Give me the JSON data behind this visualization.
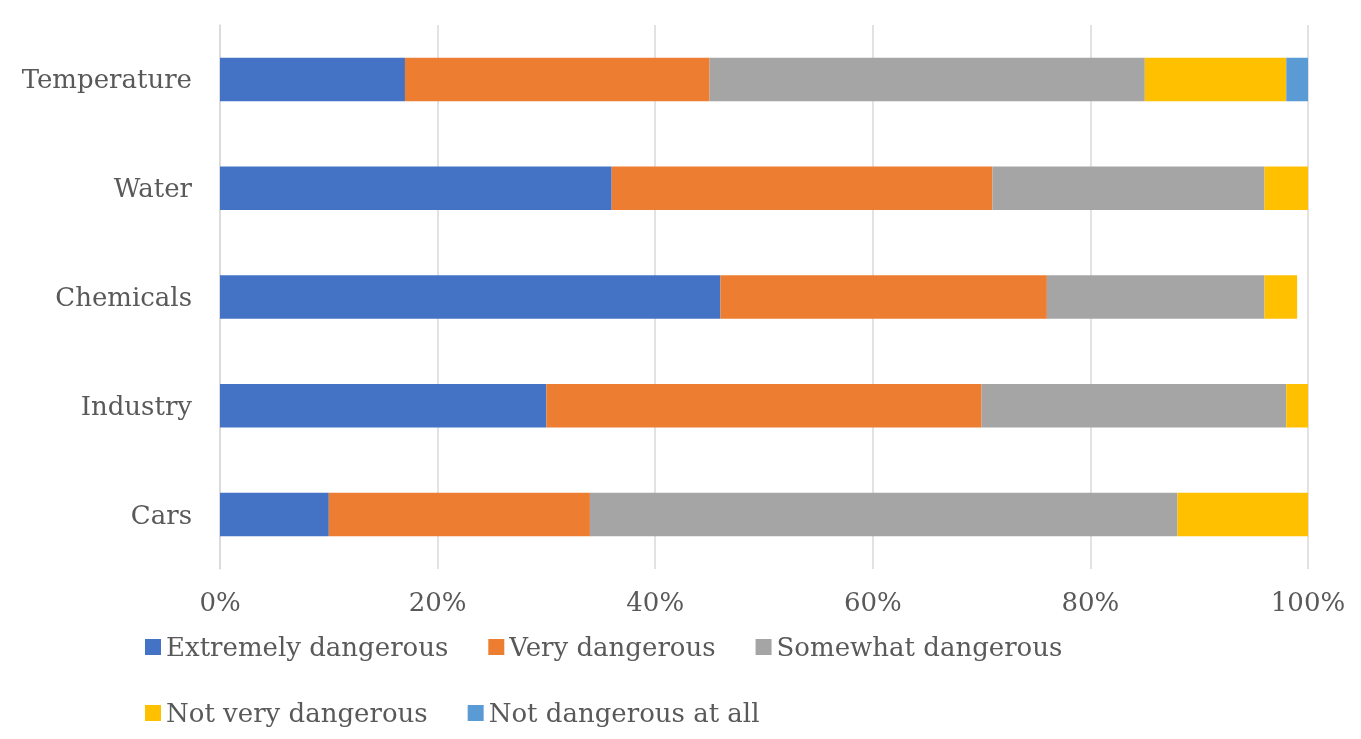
{
  "chart_data": {
    "type": "bar",
    "orientation": "horizontal",
    "stacked": true,
    "categories": [
      "Temperature",
      "Water",
      "Chemicals",
      "Industry",
      "Cars"
    ],
    "series": [
      {
        "name": "Extremely dangerous",
        "color": "#4472c4",
        "values": [
          17,
          36,
          46,
          30,
          10
        ]
      },
      {
        "name": "Very dangerous",
        "color": "#ed7d31",
        "values": [
          28,
          35,
          30,
          40,
          24
        ]
      },
      {
        "name": "Somewhat dangerous",
        "color": "#a5a5a5",
        "values": [
          40,
          25,
          20,
          28,
          54
        ]
      },
      {
        "name": "Not very dangerous",
        "color": "#ffc000",
        "values": [
          13,
          4,
          3,
          2,
          12
        ]
      },
      {
        "name": "Not dangerous at all",
        "color": "#5b9bd5",
        "values": [
          2,
          0,
          0,
          0,
          0.2
        ]
      }
    ],
    "xlim": [
      0,
      100
    ],
    "xticks": [
      {
        "value": 0,
        "label": "0%"
      },
      {
        "value": 20,
        "label": "20%"
      },
      {
        "value": 40,
        "label": "40%"
      },
      {
        "value": 60,
        "label": "60%"
      },
      {
        "value": 80,
        "label": "80%"
      },
      {
        "value": 100,
        "label": "100%"
      }
    ],
    "grid": "x",
    "legend": "bottom"
  }
}
